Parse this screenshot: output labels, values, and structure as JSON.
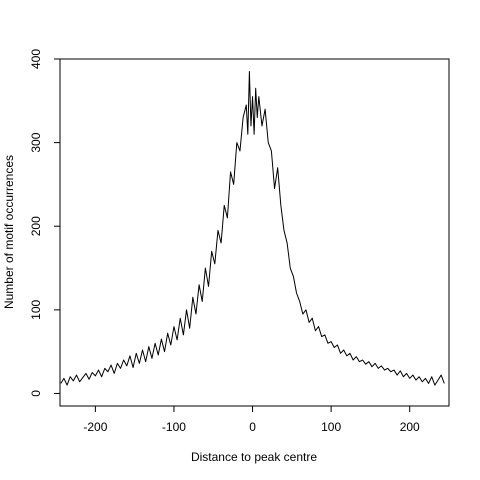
{
  "chart_data": {
    "type": "line",
    "title": "",
    "xlabel": "Distance to peak centre",
    "ylabel": "Number of motif occurrences",
    "xlim": [
      -250,
      250
    ],
    "ylim": [
      0,
      400
    ],
    "x_ticks": [
      -200,
      -100,
      0,
      100,
      200
    ],
    "y_ticks": [
      0,
      100,
      200,
      300,
      400
    ],
    "x_tick_labels": [
      "-200",
      "-100",
      "0",
      "100",
      "200"
    ],
    "y_tick_labels": [
      "0",
      "100",
      "200",
      "300",
      "400"
    ],
    "grid": false,
    "legend": "none",
    "line_color": "#000000",
    "series": [
      {
        "x": [
          -244,
          -240,
          -236,
          -232,
          -228,
          -224,
          -220,
          -216,
          -212,
          -208,
          -204,
          -200,
          -196,
          -192,
          -188,
          -184,
          -180,
          -176,
          -172,
          -168,
          -164,
          -160,
          -156,
          -152,
          -148,
          -144,
          -140,
          -136,
          -132,
          -128,
          -124,
          -120,
          -116,
          -112,
          -108,
          -104,
          -100,
          -96,
          -92,
          -88,
          -84,
          -80,
          -76,
          -72,
          -68,
          -64,
          -60,
          -56,
          -52,
          -48,
          -44,
          -40,
          -36,
          -32,
          -28,
          -24,
          -20,
          -16,
          -12,
          -8,
          -6,
          -4,
          -2,
          0,
          2,
          4,
          6,
          8,
          12,
          16,
          20,
          24,
          28,
          32,
          36,
          40,
          44,
          48,
          52,
          56,
          60,
          64,
          68,
          72,
          76,
          80,
          84,
          88,
          92,
          96,
          100,
          104,
          108,
          112,
          116,
          120,
          124,
          128,
          132,
          136,
          140,
          144,
          148,
          152,
          156,
          160,
          164,
          168,
          172,
          176,
          180,
          184,
          188,
          192,
          196,
          200,
          204,
          208,
          212,
          216,
          220,
          224,
          228,
          232,
          236,
          240,
          244
        ],
        "y": [
          12,
          18,
          10,
          20,
          15,
          22,
          14,
          19,
          24,
          17,
          25,
          21,
          28,
          20,
          30,
          26,
          34,
          24,
          36,
          30,
          40,
          33,
          45,
          31,
          48,
          36,
          52,
          38,
          56,
          42,
          60,
          46,
          65,
          50,
          72,
          58,
          80,
          64,
          90,
          70,
          100,
          78,
          115,
          95,
          130,
          110,
          150,
          128,
          170,
          155,
          195,
          180,
          225,
          210,
          265,
          250,
          300,
          290,
          330,
          345,
          310,
          385,
          320,
          355,
          310,
          365,
          330,
          355,
          320,
          340,
          300,
          290,
          245,
          270,
          225,
          195,
          180,
          150,
          140,
          120,
          110,
          95,
          100,
          85,
          90,
          75,
          80,
          68,
          70,
          60,
          62,
          55,
          58,
          48,
          52,
          45,
          48,
          40,
          44,
          38,
          40,
          35,
          38,
          32,
          36,
          30,
          33,
          28,
          30,
          26,
          28,
          22,
          27,
          20,
          24,
          18,
          22,
          16,
          20,
          14,
          18,
          12,
          20,
          10,
          16,
          22,
          12
        ]
      }
    ]
  }
}
